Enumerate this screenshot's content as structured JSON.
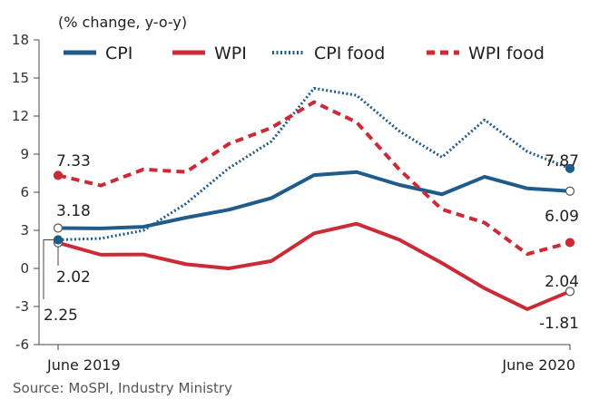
{
  "chart_data": {
    "type": "line",
    "unit_label": "(% change, y-o-y)",
    "x_tick_labels": [
      "June 2019",
      "June 2020"
    ],
    "x": [
      "Jun 2019",
      "Jul 2019",
      "Aug 2019",
      "Sep 2019",
      "Oct 2019",
      "Nov 2019",
      "Dec 2019",
      "Jan 2020",
      "Feb 2020",
      "Mar 2020",
      "Apr 2020",
      "May 2020",
      "Jun 2020"
    ],
    "ylim": [
      -6,
      18
    ],
    "yticks": [
      18,
      15,
      12,
      9,
      6,
      3,
      0,
      -3,
      -6
    ],
    "grid": false,
    "legend_position": "top",
    "series": [
      {
        "name": "CPI",
        "color": "#1f5c8c",
        "style": "solid",
        "values": [
          3.18,
          3.15,
          3.28,
          4.0,
          4.62,
          5.54,
          7.35,
          7.59,
          6.58,
          5.84,
          7.22,
          6.3,
          6.09
        ]
      },
      {
        "name": "WPI",
        "color": "#cc2a36",
        "style": "solid",
        "values": [
          2.02,
          1.08,
          1.1,
          0.33,
          0.0,
          0.58,
          2.76,
          3.52,
          2.26,
          0.42,
          -1.57,
          -3.21,
          -1.81
        ]
      },
      {
        "name": "CPI food",
        "color": "#1f5c8c",
        "style": "dotted",
        "values": [
          2.25,
          2.36,
          2.99,
          5.11,
          7.89,
          10.01,
          14.19,
          13.63,
          10.81,
          8.76,
          11.7,
          9.2,
          7.87
        ]
      },
      {
        "name": "WPI food",
        "color": "#cc2a36",
        "style": "dashed",
        "values": [
          7.33,
          6.53,
          7.8,
          7.6,
          9.8,
          11.08,
          13.1,
          11.51,
          7.79,
          4.65,
          3.6,
          1.13,
          2.04
        ]
      }
    ],
    "annotations": [
      "7.33",
      "3.18",
      "2.02",
      "2.25",
      "7.87",
      "6.09",
      "2.04",
      "-1.81"
    ],
    "source": "Source: MoSPI, Industry Ministry"
  }
}
